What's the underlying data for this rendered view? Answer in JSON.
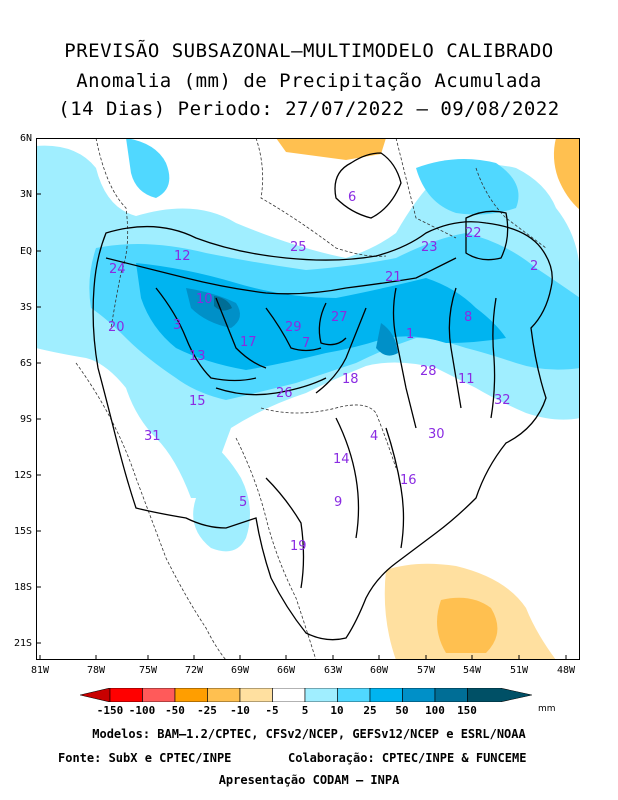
{
  "title": {
    "line1": "PREVISÃO SUBSAZONAL–MULTIMODELO CALIBRADO",
    "line2": "Anomalia (mm) de Precipitação Acumulada",
    "line3": "(14 Dias) Periodo: 27/07/2022 – 09/08/2022"
  },
  "axes": {
    "lat_labels": [
      "6N",
      "3N",
      "EQ",
      "3S",
      "6S",
      "9S",
      "12S",
      "15S",
      "18S",
      "21S"
    ],
    "lon_labels": [
      "81W",
      "78W",
      "75W",
      "72W",
      "69W",
      "66W",
      "63W",
      "60W",
      "57W",
      "54W",
      "51W",
      "48W"
    ]
  },
  "basins": [
    "1",
    "2",
    "3",
    "4",
    "5",
    "6",
    "7",
    "8",
    "9",
    "10",
    "11",
    "12",
    "13",
    "14",
    "15",
    "16",
    "17",
    "18",
    "19",
    "20",
    "21",
    "22",
    "23",
    "24",
    "25",
    "26",
    "27",
    "28",
    "29",
    "30",
    "31",
    "32"
  ],
  "colorbar": {
    "labels": [
      "-150",
      "-100",
      "-50",
      "-25",
      "-10",
      "-5",
      "5",
      "10",
      "25",
      "50",
      "100",
      "150"
    ],
    "colors": [
      "#c80000",
      "#ff0000",
      "#ff5a5a",
      "#ff9e00",
      "#ffc050",
      "#ffe0a0",
      "#ffffff",
      "#a0eeff",
      "#50d8ff",
      "#00b4f0",
      "#0090c8",
      "#006e96",
      "#005066"
    ],
    "unit": "mm"
  },
  "footer": {
    "models": "Modelos: BAM–1.2/CPTEC, CFSv2/NCEP, GEFSv12/NCEP e ESRL/NOAA",
    "source": "Fonte: SubX e CPTEC/INPE",
    "collab": "Colaboração: CPTEC/INPE & FUNCEME",
    "presentation": "Apresentação CODAM – INPA"
  }
}
